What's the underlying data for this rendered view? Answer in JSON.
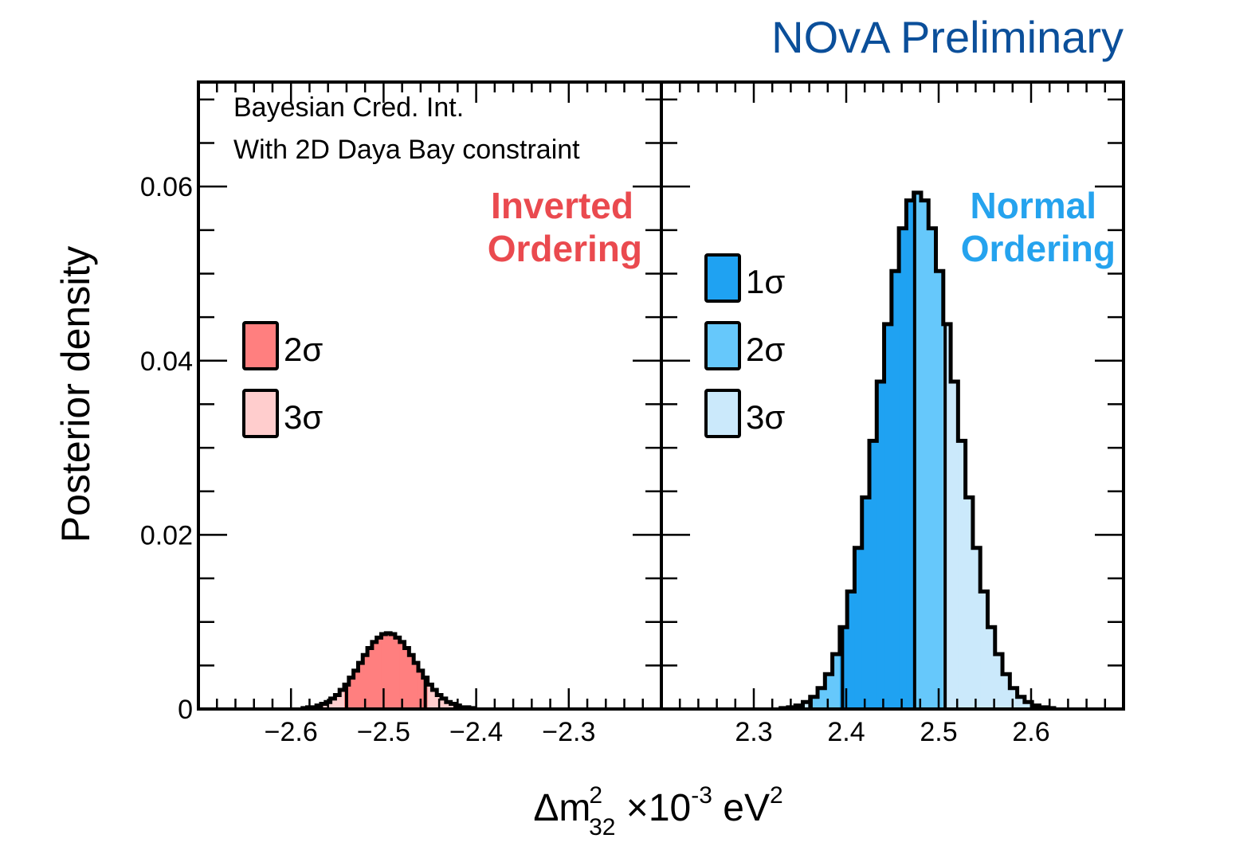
{
  "header": {
    "experiment_label": "NOvA Preliminary"
  },
  "colors": {
    "experiment": "#0b4f9a",
    "inverted": "#ea4a4f",
    "normal": "#25a3ee",
    "io_2sigma": "#ff7f7f",
    "io_3sigma": "#ffcdcd",
    "no_1sigma": "#1fa2f2",
    "no_2sigma": "#66c8fb",
    "no_3sigma": "#cbe9fb"
  },
  "chart_data": [
    {
      "type": "bar",
      "panel": "left",
      "annotation": [
        "Bayesian Cred. Int.",
        "With 2D Daya Bay constraint"
      ],
      "label": [
        "Inverted",
        "Ordering"
      ],
      "ylabel": "Posterior density",
      "xlim": [
        -2.7,
        -2.2
      ],
      "ylim": [
        0,
        0.072
      ],
      "xticks": [
        -2.6,
        -2.5,
        -2.4,
        -2.3
      ],
      "xtick_labels": [
        "−2.6",
        "−2.5",
        "−2.4",
        "−2.3"
      ],
      "yticks": [
        0,
        0.02,
        0.04,
        0.06
      ],
      "ytick_labels": [
        "0",
        "0.02",
        "0.04",
        "0.06"
      ],
      "bin_width": 0.005,
      "bin_start": -2.5875,
      "values": [
        0.0001,
        0.0002,
        0.0002,
        0.0004,
        0.0006,
        0.0008,
        0.0012,
        0.0016,
        0.0022,
        0.0028,
        0.0036,
        0.0044,
        0.0053,
        0.0062,
        0.007,
        0.0077,
        0.0082,
        0.0086,
        0.0087,
        0.0086,
        0.0082,
        0.0077,
        0.007,
        0.0062,
        0.0053,
        0.0044,
        0.0036,
        0.0028,
        0.0022,
        0.0016,
        0.0012,
        0.0008,
        0.0006,
        0.0004,
        0.0002,
        0.0002,
        0.0001
      ],
      "intervals": {
        "2sigma": [
          -2.54,
          -2.455
        ]
      },
      "legend": [
        {
          "label": "2σ",
          "color_key": "io_2sigma"
        },
        {
          "label": "3σ",
          "color_key": "io_3sigma"
        }
      ],
      "legend_placement": "left-middle",
      "grid": false
    },
    {
      "type": "bar",
      "panel": "right",
      "label": [
        "Normal",
        "Ordering"
      ],
      "xlim": [
        2.2,
        2.7
      ],
      "ylim": [
        0,
        0.072
      ],
      "xticks": [
        2.3,
        2.4,
        2.5,
        2.6
      ],
      "xtick_labels": [
        "2.3",
        "2.4",
        "2.5",
        "2.6"
      ],
      "bin_width": 0.008,
      "bin_start": 2.329,
      "values": [
        0.0001,
        0.0002,
        0.0004,
        0.0008,
        0.0014,
        0.0024,
        0.004,
        0.0063,
        0.0094,
        0.0135,
        0.0185,
        0.0243,
        0.0308,
        0.0376,
        0.0442,
        0.0503,
        0.0552,
        0.0584,
        0.0593,
        0.0584,
        0.0552,
        0.0503,
        0.0442,
        0.0376,
        0.0308,
        0.0243,
        0.0185,
        0.0135,
        0.0094,
        0.0063,
        0.004,
        0.0024,
        0.0014,
        0.0008,
        0.0004,
        0.0002,
        0.0001
      ],
      "intervals": {
        "1sigma": [
          2.396,
          2.474
        ],
        "2sigma": [
          2.362,
          2.507
        ]
      },
      "legend": [
        {
          "label": "1σ",
          "color_key": "no_1sigma"
        },
        {
          "label": "2σ",
          "color_key": "no_2sigma"
        },
        {
          "label": "3σ",
          "color_key": "no_3sigma"
        }
      ],
      "legend_placement": "left-middle",
      "grid": false
    }
  ],
  "xlabel": {
    "main": "Δm",
    "sup": "2",
    "sub": "32",
    "times": " ×10",
    "exp": "-3",
    "unit": " eV",
    "unit_exp": "2"
  }
}
